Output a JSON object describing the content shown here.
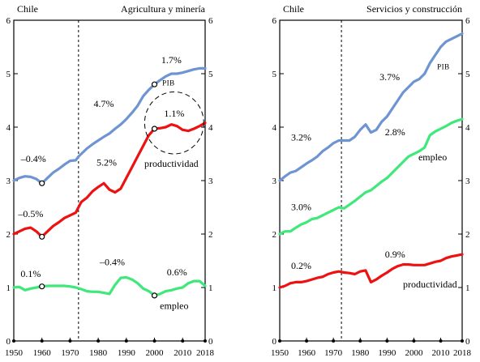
{
  "chart_data": [
    {
      "type": "line",
      "country": "Chile",
      "title": "Agricultura y minería",
      "x_ticks": [
        1950,
        1960,
        1970,
        1980,
        1990,
        2000,
        2010,
        2018
      ],
      "ylim": [
        0,
        6
      ],
      "y_ticks": [
        0,
        1,
        2,
        3,
        4,
        5,
        6
      ],
      "vertical_reference": 1973,
      "colors": {
        "pib": "#6f94d2",
        "productividad": "#ee1111",
        "empleo": "#3ee87b"
      },
      "series": [
        {
          "key": "pib",
          "name": "PIB",
          "label_text": "PIB",
          "x": [
            1950,
            1952,
            1954,
            1956,
            1958,
            1960,
            1962,
            1964,
            1966,
            1968,
            1970,
            1972,
            1973,
            1974,
            1976,
            1978,
            1980,
            1982,
            1984,
            1986,
            1988,
            1990,
            1992,
            1994,
            1996,
            1998,
            2000,
            2002,
            2004,
            2006,
            2008,
            2010,
            2012,
            2014,
            2016,
            2018
          ],
          "y": [
            3.0,
            3.05,
            3.08,
            3.07,
            3.03,
            2.95,
            3.05,
            3.15,
            3.22,
            3.3,
            3.37,
            3.38,
            3.45,
            3.5,
            3.6,
            3.68,
            3.75,
            3.82,
            3.88,
            3.97,
            4.05,
            4.15,
            4.27,
            4.4,
            4.58,
            4.7,
            4.8,
            4.88,
            4.95,
            5.0,
            5.0,
            5.02,
            5.05,
            5.08,
            5.1,
            5.1
          ]
        },
        {
          "key": "productividad",
          "name": "productividad",
          "label_text": "productividad",
          "x": [
            1950,
            1952,
            1954,
            1956,
            1958,
            1960,
            1962,
            1964,
            1966,
            1968,
            1970,
            1972,
            1973,
            1974,
            1976,
            1978,
            1980,
            1982,
            1984,
            1986,
            1988,
            1990,
            1992,
            1994,
            1996,
            1998,
            2000,
            2002,
            2004,
            2006,
            2008,
            2010,
            2012,
            2014,
            2016,
            2018
          ],
          "y": [
            2.0,
            2.05,
            2.1,
            2.12,
            2.05,
            1.95,
            2.05,
            2.15,
            2.22,
            2.3,
            2.35,
            2.4,
            2.5,
            2.6,
            2.68,
            2.8,
            2.88,
            2.95,
            2.83,
            2.78,
            2.85,
            3.05,
            3.25,
            3.45,
            3.65,
            3.85,
            3.97,
            3.98,
            4.0,
            4.05,
            4.02,
            3.95,
            3.93,
            3.97,
            4.02,
            4.08
          ]
        },
        {
          "key": "empleo",
          "name": "empleo",
          "label_text": "empleo",
          "x": [
            1950,
            1952,
            1954,
            1956,
            1958,
            1960,
            1962,
            1964,
            1966,
            1968,
            1970,
            1972,
            1974,
            1976,
            1978,
            1980,
            1982,
            1984,
            1986,
            1988,
            1990,
            1992,
            1994,
            1996,
            1998,
            2000,
            2002,
            2004,
            2006,
            2008,
            2010,
            2012,
            2014,
            2016,
            2018
          ],
          "y": [
            1.0,
            1.01,
            0.95,
            0.98,
            1.0,
            1.02,
            1.03,
            1.03,
            1.03,
            1.03,
            1.02,
            1.0,
            0.97,
            0.93,
            0.92,
            0.92,
            0.9,
            0.88,
            1.05,
            1.18,
            1.19,
            1.15,
            1.08,
            0.98,
            0.93,
            0.85,
            0.88,
            0.93,
            0.95,
            0.98,
            1.0,
            1.08,
            1.12,
            1.12,
            1.03
          ]
        }
      ],
      "markers": [
        {
          "x": 1960,
          "y": 2.95
        },
        {
          "x": 1960,
          "y": 1.95
        },
        {
          "x": 1960,
          "y": 1.02
        },
        {
          "x": 2000,
          "y": 4.8
        },
        {
          "x": 2000,
          "y": 3.97
        },
        {
          "x": 2000,
          "y": 0.85
        }
      ],
      "annotations": [
        {
          "text": "–0.4%",
          "x": 1957,
          "y": 3.35
        },
        {
          "text": "4.7%",
          "x": 1982,
          "y": 4.38
        },
        {
          "text": "1.7%",
          "x": 2006,
          "y": 5.2
        },
        {
          "text": "–0.5%",
          "x": 1956,
          "y": 2.32
        },
        {
          "text": "5.2%",
          "x": 1983,
          "y": 3.28
        },
        {
          "text": "1.1%",
          "x": 2007,
          "y": 4.2
        },
        {
          "text": "0.1%",
          "x": 1956,
          "y": 1.2
        },
        {
          "text": "–0.4%",
          "x": 1985,
          "y": 1.42
        },
        {
          "text": "0.6%",
          "x": 2008,
          "y": 1.23
        }
      ],
      "series_labels": [
        {
          "key": "pib",
          "x": 2005,
          "y": 4.78
        },
        {
          "key": "productividad",
          "x": 2006,
          "y": 3.26
        },
        {
          "key": "empleo",
          "x": 2007,
          "y": 0.6
        }
      ],
      "highlight_ellipse": {
        "x_center": 2007,
        "y_center": 4.08,
        "x_radius": 10.5,
        "y_radius": 0.58
      }
    },
    {
      "type": "line",
      "country": "Chile",
      "title": "Servicios y construcción",
      "x_ticks": [
        1950,
        1960,
        1970,
        1980,
        1990,
        2000,
        2010,
        2018
      ],
      "ylim": [
        0,
        6
      ],
      "y_ticks": [
        0,
        1,
        2,
        3,
        4,
        5,
        6
      ],
      "vertical_reference": 1973,
      "colors": {
        "pib": "#6f94d2",
        "productividad": "#ee1111",
        "empleo": "#3ee87b"
      },
      "series": [
        {
          "key": "pib",
          "name": "PIB",
          "label_text": "PIB",
          "x": [
            1950,
            1952,
            1954,
            1956,
            1958,
            1960,
            1962,
            1964,
            1966,
            1968,
            1970,
            1972,
            1974,
            1976,
            1978,
            1980,
            1982,
            1984,
            1986,
            1988,
            1990,
            1992,
            1994,
            1996,
            1998,
            2000,
            2002,
            2004,
            2006,
            2008,
            2010,
            2012,
            2014,
            2016,
            2018
          ],
          "y": [
            3.0,
            3.08,
            3.15,
            3.18,
            3.25,
            3.32,
            3.38,
            3.45,
            3.55,
            3.62,
            3.7,
            3.75,
            3.75,
            3.75,
            3.82,
            3.95,
            4.05,
            3.9,
            3.95,
            4.1,
            4.2,
            4.35,
            4.5,
            4.65,
            4.75,
            4.85,
            4.9,
            5.0,
            5.2,
            5.35,
            5.5,
            5.6,
            5.65,
            5.7,
            5.75
          ]
        },
        {
          "key": "empleo",
          "name": "empleo",
          "label_text": "empleo",
          "x": [
            1950,
            1952,
            1954,
            1956,
            1958,
            1960,
            1962,
            1964,
            1966,
            1968,
            1970,
            1972,
            1974,
            1976,
            1978,
            1980,
            1982,
            1984,
            1986,
            1988,
            1990,
            1992,
            1994,
            1996,
            1998,
            2000,
            2002,
            2004,
            2006,
            2008,
            2010,
            2012,
            2014,
            2016,
            2018
          ],
          "y": [
            2.0,
            2.05,
            2.05,
            2.12,
            2.18,
            2.22,
            2.28,
            2.3,
            2.35,
            2.4,
            2.45,
            2.5,
            2.48,
            2.55,
            2.62,
            2.7,
            2.78,
            2.82,
            2.9,
            2.98,
            3.05,
            3.15,
            3.25,
            3.35,
            3.45,
            3.5,
            3.55,
            3.62,
            3.85,
            3.92,
            3.97,
            4.02,
            4.08,
            4.12,
            4.15
          ]
        },
        {
          "key": "productividad",
          "name": "productividad",
          "label_text": "productividad",
          "x": [
            1950,
            1952,
            1954,
            1956,
            1958,
            1960,
            1962,
            1964,
            1966,
            1968,
            1970,
            1972,
            1974,
            1976,
            1978,
            1980,
            1982,
            1984,
            1986,
            1988,
            1990,
            1992,
            1994,
            1996,
            1998,
            2000,
            2002,
            2004,
            2006,
            2008,
            2010,
            2012,
            2014,
            2016,
            2018
          ],
          "y": [
            1.0,
            1.03,
            1.08,
            1.1,
            1.1,
            1.12,
            1.15,
            1.18,
            1.2,
            1.25,
            1.28,
            1.3,
            1.28,
            1.27,
            1.25,
            1.3,
            1.32,
            1.1,
            1.15,
            1.22,
            1.28,
            1.35,
            1.4,
            1.43,
            1.43,
            1.42,
            1.42,
            1.42,
            1.45,
            1.48,
            1.5,
            1.55,
            1.58,
            1.6,
            1.62
          ]
        }
      ],
      "markers": [],
      "annotations": [
        {
          "text": "3.2%",
          "x": 1958,
          "y": 3.75
        },
        {
          "text": "3.7%",
          "x": 1991,
          "y": 4.88
        },
        {
          "text": "3.0%",
          "x": 1958,
          "y": 2.45
        },
        {
          "text": "2.8%",
          "x": 1993,
          "y": 3.85
        },
        {
          "text": "0.2%",
          "x": 1958,
          "y": 1.35
        },
        {
          "text": "0.9%",
          "x": 1993,
          "y": 1.56
        }
      ],
      "series_labels": [
        {
          "key": "pib",
          "x": 2011,
          "y": 5.08
        },
        {
          "key": "empleo",
          "x": 2007,
          "y": 3.38
        },
        {
          "key": "productividad",
          "x": 2006,
          "y": 1.0
        }
      ],
      "highlight_ellipse": null
    }
  ]
}
